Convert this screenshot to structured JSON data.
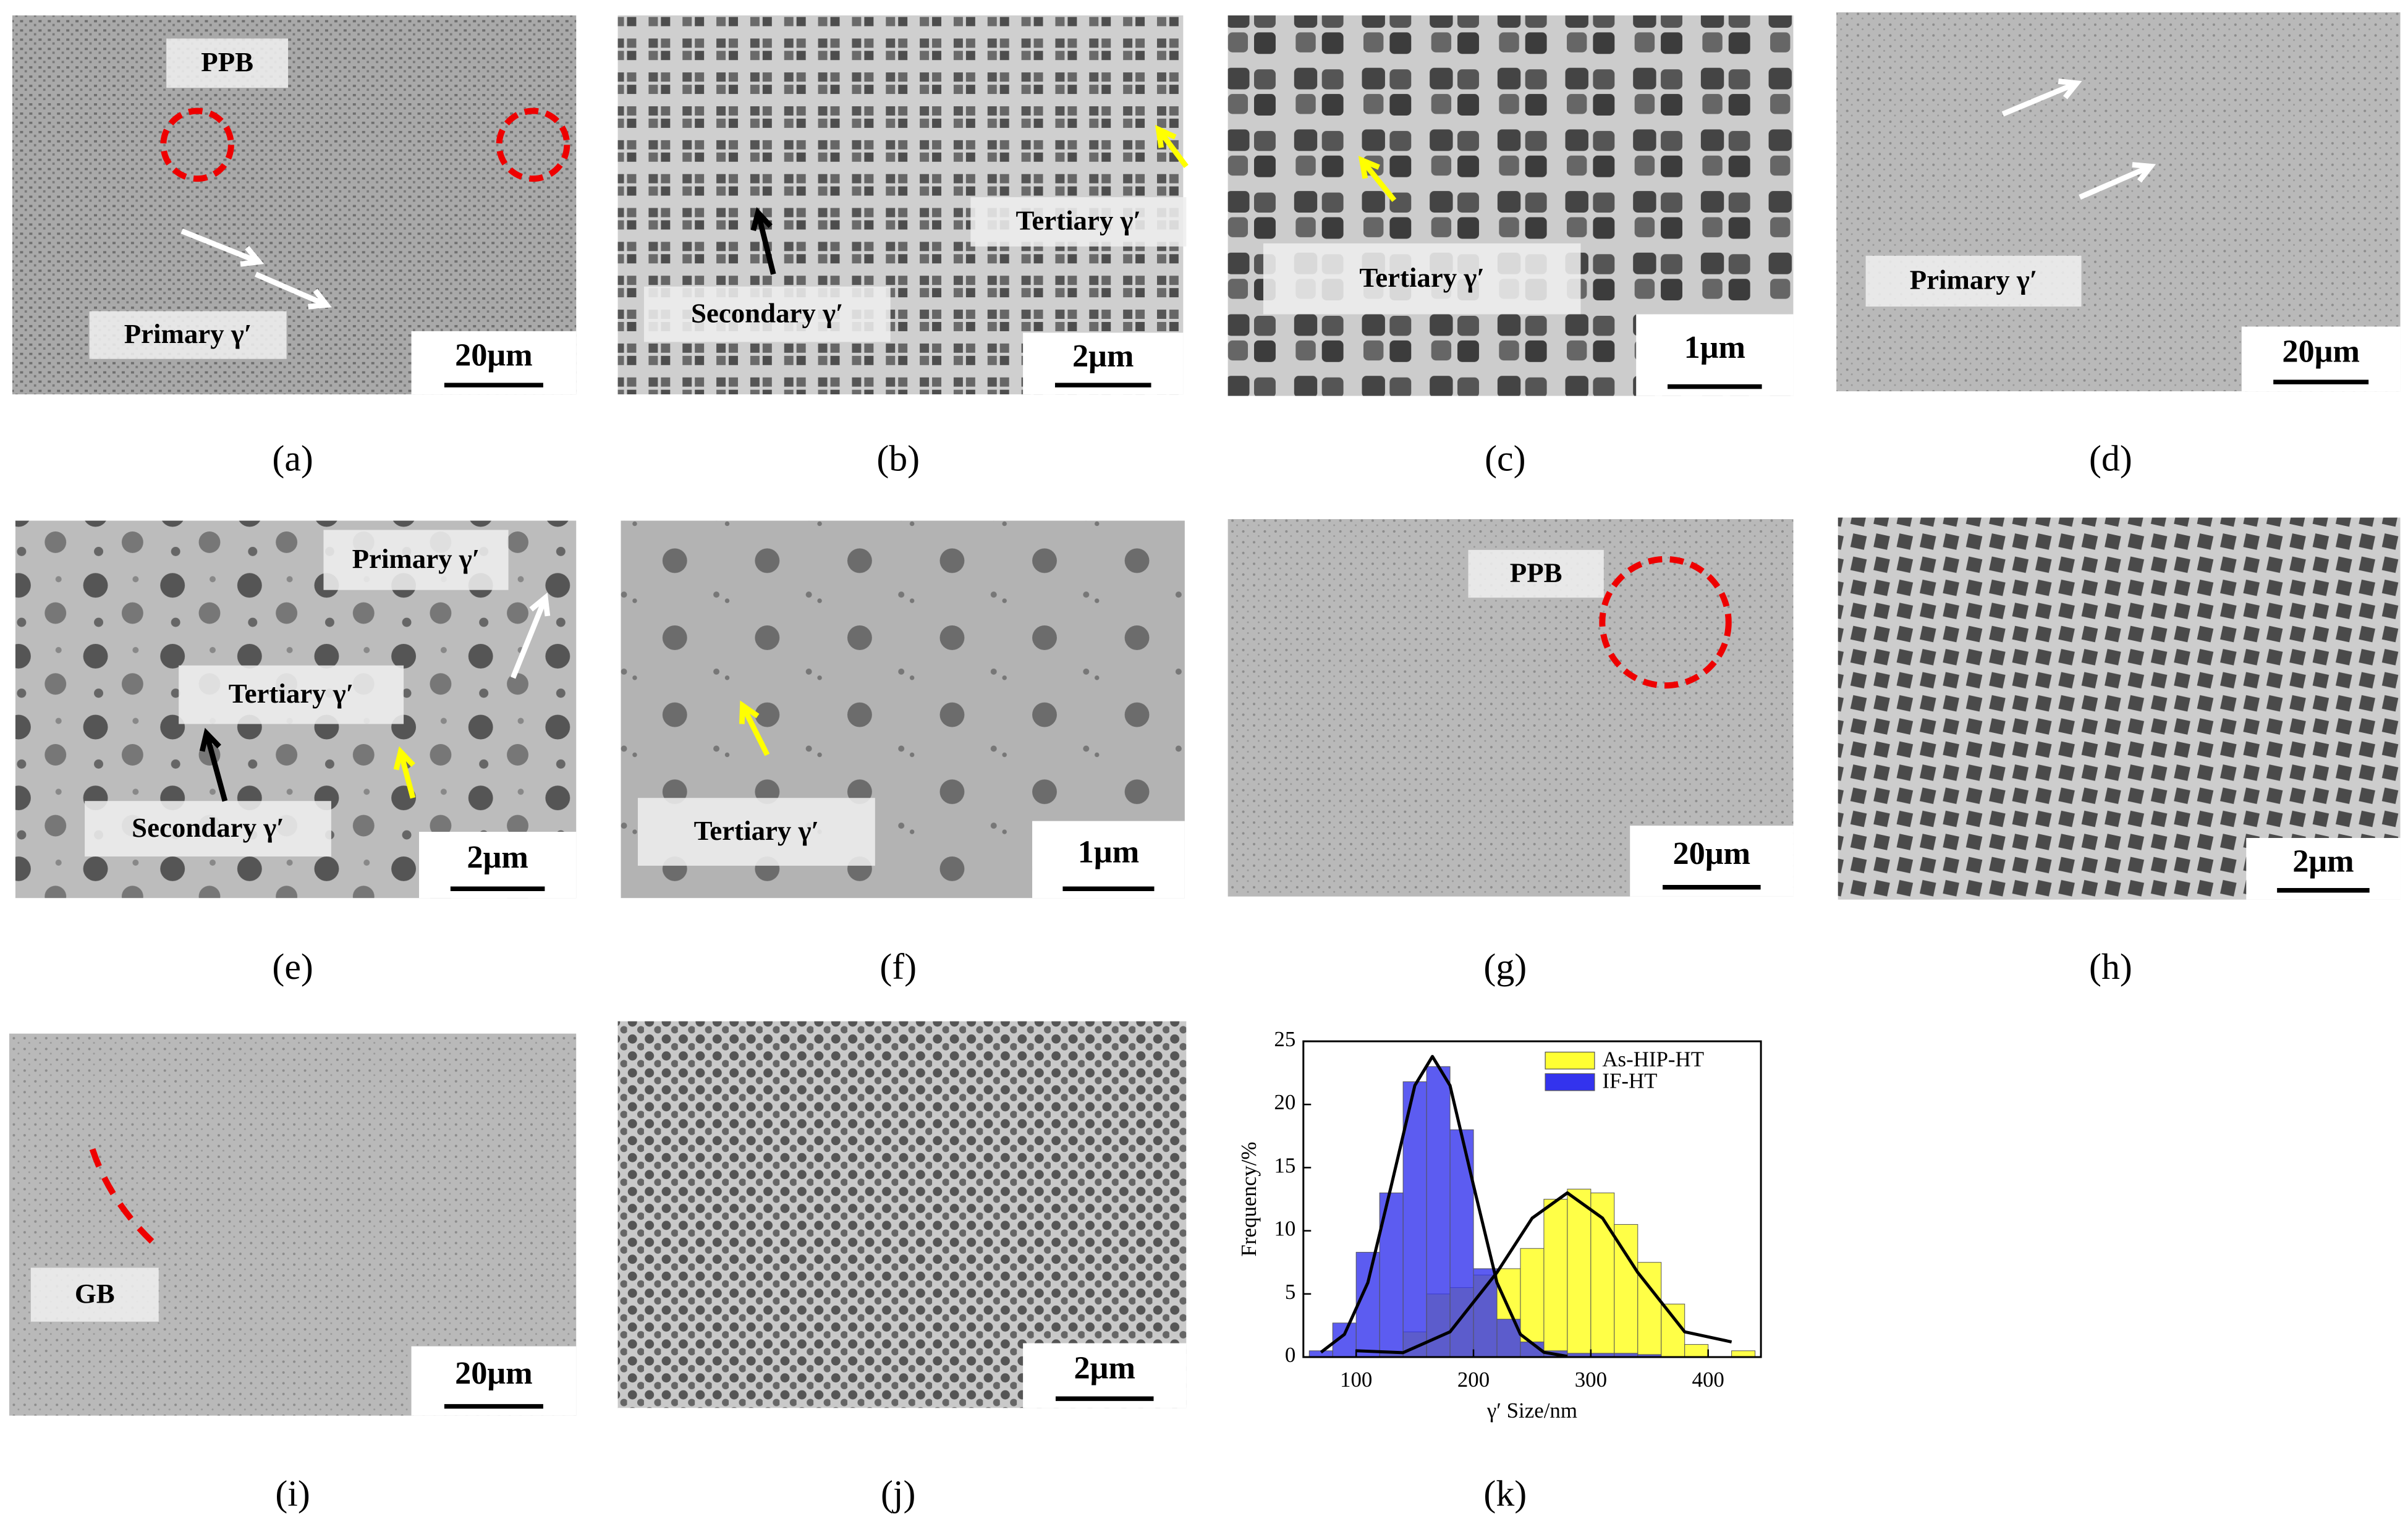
{
  "panels": [
    {
      "label": "(a)",
      "scale_bar": "20μm",
      "annotations": [
        "PPB",
        "Primary γ′"
      ]
    },
    {
      "label": "(b)",
      "scale_bar": "2μm",
      "annotations": [
        "Tertiary γ′",
        "Secondary γ′"
      ]
    },
    {
      "label": "(c)",
      "scale_bar": "1μm",
      "annotations": [
        "Tertiary γ′"
      ]
    },
    {
      "label": "(d)",
      "scale_bar": "20μm",
      "annotations": [
        "Primary γ′"
      ]
    },
    {
      "label": "(e)",
      "scale_bar": "2μm",
      "annotations": [
        "Primary γ′",
        "Tertiary γ′",
        "Secondary γ′"
      ]
    },
    {
      "label": "(f)",
      "scale_bar": "1μm",
      "annotations": [
        "Tertiary γ′"
      ]
    },
    {
      "label": "(g)",
      "scale_bar": "20μm",
      "annotations": [
        "PPB"
      ]
    },
    {
      "label": "(h)",
      "scale_bar": "2μm",
      "annotations": []
    },
    {
      "label": "(i)",
      "scale_bar": "20μm",
      "annotations": [
        "GB"
      ]
    },
    {
      "label": "(j)",
      "scale_bar": "2μm",
      "annotations": []
    }
  ],
  "chart_data": {
    "type": "histogram",
    "label": "(k)",
    "x_label": "γ′ Size/nm",
    "y_label": "Frequency/%",
    "bins": [
      60,
      80,
      100,
      120,
      140,
      160,
      180,
      200,
      220,
      240,
      260,
      280,
      300,
      320,
      340,
      360,
      380,
      400,
      420,
      440
    ],
    "series": [
      {
        "name": "As-HIP-HT",
        "color": "#ffff33",
        "values": [
          0,
          0,
          0,
          0.3,
          2,
          5,
          5.5,
          6.5,
          7,
          8.6,
          12.5,
          13.3,
          13,
          10.5,
          7.5,
          4.2,
          1,
          0,
          0.5
        ],
        "fit": {
          "x": [
            100,
            140,
            180,
            220,
            250,
            280,
            310,
            340,
            380,
            420
          ],
          "values": [
            0.5,
            0.35,
            2,
            6.7,
            11,
            13,
            11,
            6.7,
            2,
            1.2
          ]
        }
      },
      {
        "name": "IF-HT",
        "color": "#3333ee",
        "values": [
          0.5,
          2.7,
          8.3,
          13,
          21.8,
          23,
          18,
          7,
          3,
          1.2,
          0.5,
          0.3,
          0.3,
          0.3,
          0.2,
          0,
          0,
          0,
          0
        ],
        "fit": {
          "x": [
            70,
            90,
            110,
            130,
            150,
            165,
            180,
            200,
            220,
            240,
            260,
            280
          ],
          "values": [
            0.38,
            1.8,
            5.9,
            13.6,
            21.5,
            23.8,
            21.5,
            13.6,
            5.9,
            1.8,
            0.38,
            0.06
          ]
        }
      }
    ],
    "xlim": [
      55,
      445
    ],
    "xticks": [
      100,
      200,
      300,
      400
    ],
    "ylim": [
      0,
      25
    ],
    "yticks": [
      0,
      5,
      10,
      15,
      20,
      25
    ],
    "legend": "upper right"
  }
}
